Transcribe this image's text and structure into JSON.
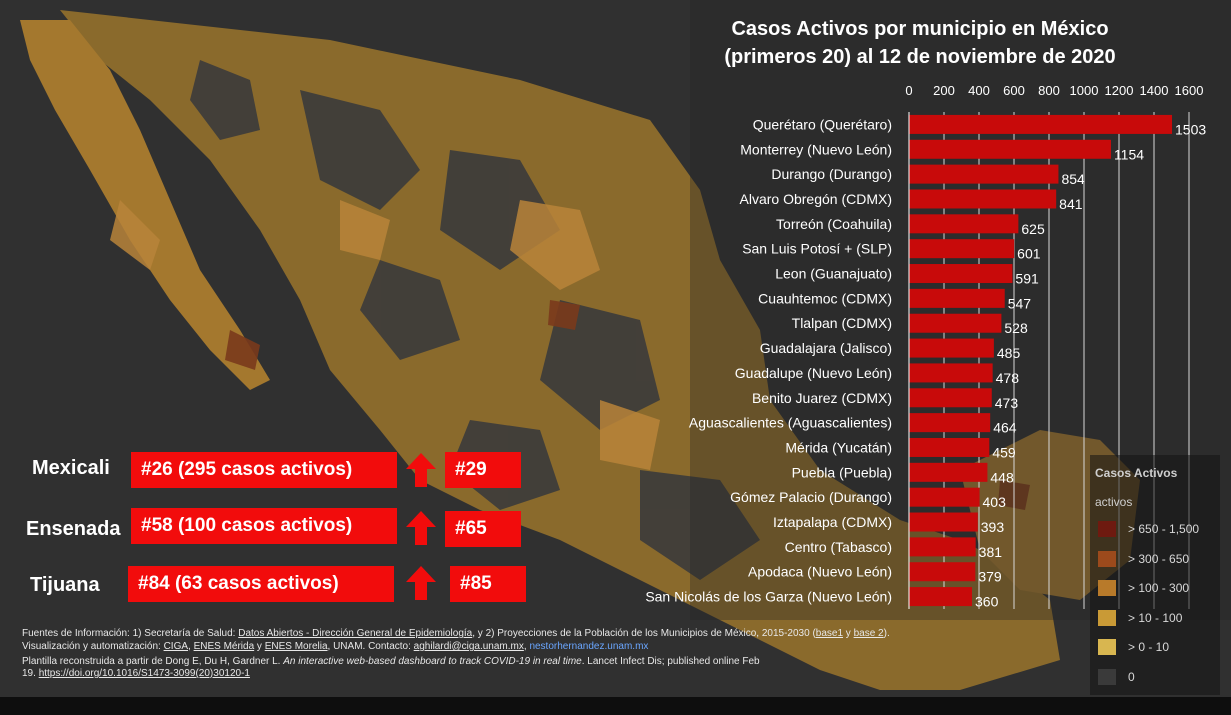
{
  "title": [
    "Casos Activos por municipio en México",
    "(primeros 20) al 12 de noviembre de 2020"
  ],
  "chart_data": {
    "type": "bar",
    "orientation": "horizontal",
    "title": "Casos Activos por municipio en México (primeros 20) al 12 de noviembre de 2020",
    "categories": [
      "Querétaro (Querétaro)",
      "Monterrey (Nuevo León)",
      "Durango (Durango)",
      "Alvaro Obregón (CDMX)",
      "Torreón (Coahuila)",
      "San Luis Potosí + (SLP)",
      "Leon (Guanajuato)",
      "Cuauhtemoc (CDMX)",
      "Tlalpan (CDMX)",
      "Guadalajara (Jalisco)",
      "Guadalupe (Nuevo León)",
      "Benito Juarez (CDMX)",
      "Aguascalientes (Aguascalientes)",
      "Mérida (Yucatán)",
      "Puebla (Puebla)",
      "Gómez Palacio (Durango)",
      "Iztapalapa (CDMX)",
      "Centro (Tabasco)",
      "Apodaca (Nuevo León)",
      "San Nicolás de los Garza (Nuevo León)"
    ],
    "values": [
      1503,
      1154,
      854,
      841,
      625,
      601,
      591,
      547,
      528,
      485,
      478,
      473,
      464,
      459,
      448,
      403,
      393,
      381,
      379,
      360
    ],
    "xlim": [
      0,
      1600
    ],
    "xticks": [
      "0",
      "200",
      "400",
      "600",
      "800",
      "1000",
      "1200",
      "1400",
      "1600"
    ],
    "xaxis_position": "top",
    "grid": true,
    "bar_color": "#c80a0a"
  },
  "rankings": [
    {
      "city": "Mexicali",
      "rank_text": "#26 (295 casos activos)",
      "prev_rank": "#29"
    },
    {
      "city": "Ensenada",
      "rank_text": "#58 (100 casos activos)",
      "prev_rank": "#65"
    },
    {
      "city": "Tijuana",
      "rank_text": "#84 (63 casos activos)",
      "prev_rank": "#85"
    }
  ],
  "legend": {
    "title": "Casos Activos",
    "subtitle": "activos",
    "items": [
      {
        "label": "> 650 - 1,500",
        "color": "#6e1a10"
      },
      {
        "label": "> 300 - 650",
        "color": "#9c4a1c"
      },
      {
        "label": "> 100 - 300",
        "color": "#b87a2a"
      },
      {
        "label": "> 10 - 100",
        "color": "#c99a36"
      },
      {
        "label": "> 0 - 10",
        "color": "#d8b650"
      },
      {
        "label": "0",
        "color": "#3a3a3a"
      }
    ]
  },
  "sources": {
    "l1a": "Fuentes de Información: 1) Secretaría de Salud: ",
    "l1b": "Datos Abiertos - Dirección General de Epidemiología",
    "l1c": ", y 2) Proyecciones de la Población de los Municipios de México, 2015-2030 (",
    "l1d": "base1",
    "l1e": " y ",
    "l1f": "base 2",
    "l1g": ").",
    "l2a": " Visualización y automatización: ",
    "l2b": "CIGA",
    "l2c": ", ",
    "l2d": "ENES Mérida",
    "l2e": " y ",
    "l2f": "ENES Morelia",
    "l2g": ", UNAM. Contacto: ",
    "l2h": "aghilardi@ciga.unam.mx",
    "l2i": ", ",
    "l2j": "nestorhernandez.unam.mx",
    "l3a": " Plantilla reconstruida a partir de Dong E, Du H, Gardner L. ",
    "l3b": "An interactive web-based dashboard to track COVID-19 in real time",
    "l3c": ". Lancet Infect Dis; published online Feb",
    "l4a": "19. ",
    "l4b": "https://doi.org/10.1016/S1473-3099(20)30120-1"
  }
}
